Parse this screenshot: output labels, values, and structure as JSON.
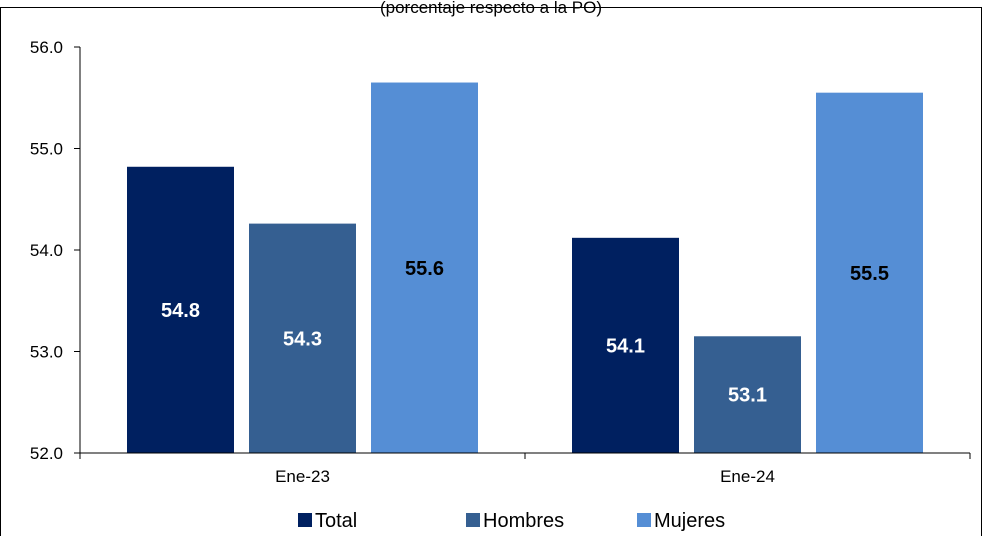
{
  "chart_data": {
    "type": "bar",
    "subtitle": "(porcentaje respecto a la PO)",
    "categories": [
      "Ene-23",
      "Ene-24"
    ],
    "series": [
      {
        "name": "Total",
        "color": "#002060",
        "label_color": "#ffffff",
        "values": [
          54.8,
          54.1
        ]
      },
      {
        "name": "Hombres",
        "color": "#355F91",
        "label_color": "#ffffff",
        "values": [
          54.3,
          53.1
        ]
      },
      {
        "name": "Mujeres",
        "color": "#558ED5",
        "label_color": "#000000",
        "values": [
          55.6,
          55.5
        ]
      }
    ],
    "bar_tops": [
      [
        54.82,
        54.12
      ],
      [
        54.26,
        53.15
      ],
      [
        55.65,
        55.55
      ]
    ],
    "ylim": [
      52.0,
      56.0
    ],
    "yticks": [
      "52.0",
      "53.0",
      "54.0",
      "55.0",
      "56.0"
    ],
    "grid": false,
    "legend_position": "bottom"
  }
}
